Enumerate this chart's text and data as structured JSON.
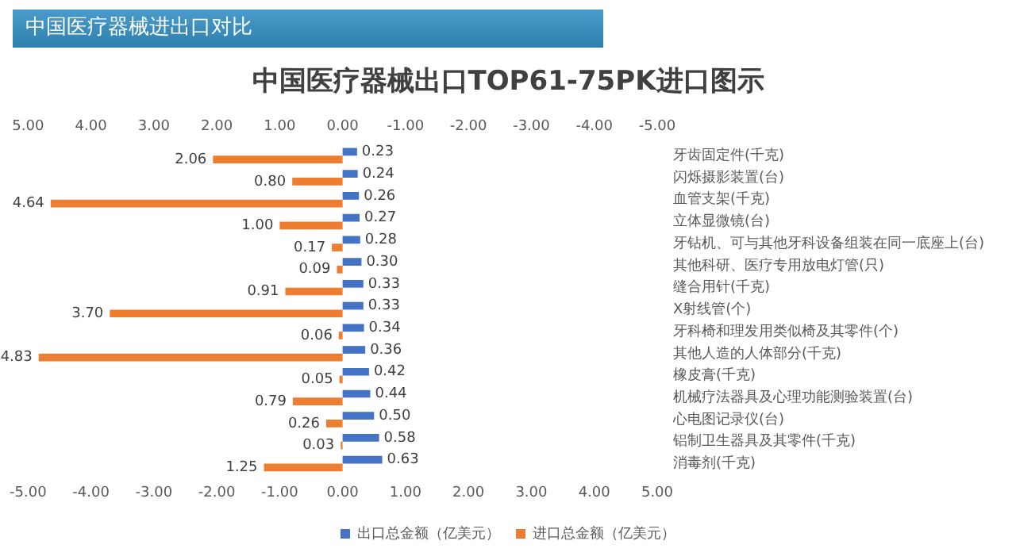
{
  "chart_data": {
    "type": "bar",
    "orientation": "horizontal",
    "title": "中国医疗器械出口TOP61-75PK进口图示",
    "annotations": [
      "中国医疗器械进出口对比"
    ],
    "categories": [
      "牙齿固定件(千克)",
      "闪烁摄影装置(台)",
      "血管支架(千克)",
      "立体显微镜(台)",
      "牙钻机、可与其他牙科设备组装在同一底座上(台)",
      "其他科研、医疗专用放电灯管(只)",
      "缝合用针(千克)",
      "X射线管(个)",
      "牙科椅和理发用类似椅及其零件(个)",
      "其他人造的人体部分(千克)",
      "橡皮膏(千克)",
      "机械疗法器具及心理功能测验装置(台)",
      "心电图记录仪(台)",
      "铝制卫生器具及其零件(千克)",
      "消毒剂(千克)"
    ],
    "series": [
      {
        "name": "出口总金额（亿美元）",
        "color": "#4472c4",
        "values": [
          0.23,
          0.24,
          0.26,
          0.27,
          0.28,
          0.3,
          0.33,
          0.33,
          0.34,
          0.36,
          0.42,
          0.44,
          0.5,
          0.58,
          0.63
        ],
        "value_labels": [
          "0.23",
          "0.24",
          "0.26",
          "0.27",
          "0.28",
          "0.30",
          "0.33",
          "0.33",
          "0.34",
          "0.36",
          "0.42",
          "0.44",
          "0.50",
          "0.58",
          "0.63"
        ]
      },
      {
        "name": "进口总金额（亿美元）",
        "color": "#ed7d31",
        "axis": "x2",
        "values": [
          2.06,
          0.8,
          4.64,
          1.0,
          0.17,
          0.09,
          0.91,
          3.7,
          0.06,
          4.83,
          0.05,
          0.79,
          0.26,
          0.03,
          1.25
        ],
        "value_labels": [
          "2.06",
          "0.80",
          "4.64",
          "1.00",
          "0.17",
          "0.09",
          "0.91",
          "3.70",
          "0.06",
          "4.83",
          "0.05",
          "0.79",
          "0.26",
          "0.03",
          "1.25"
        ]
      }
    ],
    "xlim": [
      -5,
      5
    ],
    "xticks": [
      {
        "value": -5,
        "label": "-5.00"
      },
      {
        "value": -4,
        "label": "-4.00"
      },
      {
        "value": -3,
        "label": "-3.00"
      },
      {
        "value": -2,
        "label": "-2.00"
      },
      {
        "value": -1,
        "label": "-1.00"
      },
      {
        "value": 0,
        "label": "0.00"
      },
      {
        "value": 1,
        "label": "1.00"
      },
      {
        "value": 2,
        "label": "2.00"
      },
      {
        "value": 3,
        "label": "3.00"
      },
      {
        "value": 4,
        "label": "4.00"
      },
      {
        "value": 5,
        "label": "5.00"
      }
    ],
    "x2lim": [
      5,
      -5
    ],
    "x2ticks": [
      {
        "value": 5,
        "label": "5.00"
      },
      {
        "value": 4,
        "label": "4.00"
      },
      {
        "value": 3,
        "label": "3.00"
      },
      {
        "value": 2,
        "label": "2.00"
      },
      {
        "value": 1,
        "label": "1.00"
      },
      {
        "value": 0,
        "label": "0.00"
      },
      {
        "value": -1,
        "label": "-1.00"
      },
      {
        "value": -2,
        "label": "-2.00"
      },
      {
        "value": -3,
        "label": "-3.00"
      },
      {
        "value": -4,
        "label": "-4.00"
      },
      {
        "value": -5,
        "label": "-5.00"
      }
    ],
    "legend": "bottom"
  }
}
